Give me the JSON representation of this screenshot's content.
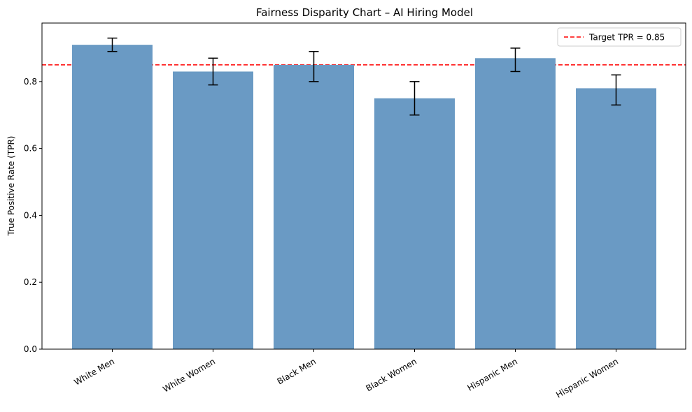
{
  "chart_data": {
    "type": "bar",
    "title": "Fairness Disparity Chart – AI Hiring Model",
    "xlabel": "",
    "ylabel": "True Positive Rate (TPR)",
    "categories": [
      "White Men",
      "White Women",
      "Black Men",
      "Black Women",
      "Hispanic Men",
      "Hispanic Women"
    ],
    "values": [
      0.91,
      0.83,
      0.85,
      0.75,
      0.87,
      0.78
    ],
    "error_low": [
      0.89,
      0.79,
      0.8,
      0.7,
      0.83,
      0.73
    ],
    "error_high": [
      0.93,
      0.87,
      0.89,
      0.8,
      0.9,
      0.82
    ],
    "ylim": [
      0,
      0.975
    ],
    "yticks": [
      0.0,
      0.2,
      0.4,
      0.6,
      0.8
    ],
    "ytick_labels": [
      "0.0",
      "0.2",
      "0.4",
      "0.6",
      "0.8"
    ],
    "reference_line": {
      "value": 0.85,
      "label": "Target TPR = 0.85",
      "color": "#ff0000",
      "style": "dashed"
    },
    "bar_color": "#6a9ac4",
    "error_bar_color": "#000000",
    "grid": false,
    "legend_position": "top-right",
    "x_tick_rotation": "30deg"
  }
}
